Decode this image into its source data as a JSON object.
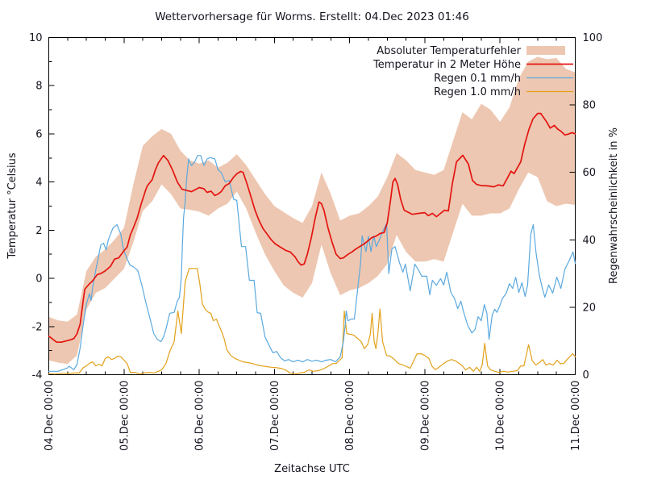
{
  "chart_data": {
    "type": "line",
    "title": "Wettervorhersage für Worms. Erstellt: 04.Dec 2023 01:46",
    "background_color": "#ffffff",
    "text_color": "#14141f",
    "axis_color": "#000000",
    "x_axis": {
      "label": "Zeitachse UTC",
      "range_hours": [
        0,
        168
      ],
      "tick_hours": [
        0,
        24,
        48,
        72,
        96,
        120,
        144,
        168
      ],
      "tick_labels": [
        "04.Dec 00:00",
        "05.Dec 00:00",
        "06.Dec 00:00",
        "07.Dec 00:00",
        "08.Dec 00:00",
        "09.Dec 00:00",
        "10.Dec 00:00",
        "11.Dec 00:00"
      ],
      "minor_tick_step_hours": 6
    },
    "y_axis": {
      "label": "Temperatur °Celsius",
      "range": [
        -4,
        10
      ],
      "ticks": [
        -4,
        -2,
        0,
        2,
        4,
        6,
        8,
        10
      ],
      "minor_ticks": [
        -3,
        -1,
        1,
        3,
        5,
        7,
        9
      ]
    },
    "y2_axis": {
      "label": "Regenwahrscheinlichkeit in %",
      "range": [
        0,
        100
      ],
      "ticks": [
        0,
        20,
        40,
        60,
        80,
        100
      ]
    },
    "legend": {
      "position": "top-right-inside",
      "items": [
        {
          "label": "Absoluter Temperaturfehler",
          "swatch": "band",
          "series_key": "error_band"
        },
        {
          "label": "Temperatur in 2 Meter Höhe",
          "swatch": "line",
          "series_key": "temperature"
        },
        {
          "label": "Regen 0.1 mm/h",
          "swatch": "line",
          "series_key": "rain_01"
        },
        {
          "label": "Regen 1.0 mm/h",
          "swatch": "line",
          "series_key": "rain_10"
        }
      ]
    },
    "series": {
      "error_band": {
        "name": "Absoluter Temperaturfehler",
        "color": "#EDC7B1",
        "axis": "y",
        "hours": [
          0,
          3,
          6,
          9,
          12,
          15,
          18,
          21,
          24,
          27,
          30,
          33,
          36,
          39,
          42,
          45,
          48,
          51,
          54,
          57,
          60,
          63,
          66,
          69,
          72,
          75,
          78,
          81,
          84,
          87,
          90,
          93,
          96,
          99,
          102,
          105,
          108,
          111,
          114,
          117,
          120,
          123,
          126,
          129,
          132,
          135,
          138,
          141,
          144,
          147,
          150,
          153,
          156,
          159,
          162,
          165,
          168
        ],
        "lower": [
          -3.4,
          -3.5,
          -3.55,
          -3.2,
          -1.3,
          -0.6,
          -0.4,
          0.0,
          0.4,
          1.5,
          2.8,
          3.2,
          3.9,
          3.5,
          2.9,
          2.85,
          2.77,
          2.6,
          2.9,
          3.1,
          3.6,
          2.9,
          1.9,
          1.0,
          0.3,
          -0.3,
          -0.6,
          -0.8,
          -0.2,
          1.4,
          0.2,
          -0.7,
          -0.5,
          -0.4,
          -0.2,
          0.1,
          0.6,
          1.8,
          1.1,
          0.7,
          0.7,
          0.8,
          0.7,
          1.9,
          3.1,
          2.6,
          2.6,
          2.7,
          2.7,
          2.9,
          3.7,
          4.4,
          4.2,
          3.2,
          3.0,
          3.1,
          3.05
        ],
        "upper": [
          -1.6,
          -1.75,
          -1.8,
          -1.5,
          0.3,
          0.9,
          1.2,
          1.6,
          2.1,
          3.9,
          5.5,
          5.9,
          6.2,
          6.0,
          5.3,
          4.9,
          4.77,
          4.9,
          4.6,
          4.8,
          5.15,
          4.7,
          4.1,
          3.5,
          3.0,
          2.75,
          2.5,
          2.3,
          3.0,
          4.4,
          3.5,
          2.4,
          2.6,
          2.7,
          3.0,
          3.4,
          4.2,
          5.2,
          4.9,
          4.5,
          4.4,
          4.3,
          4.5,
          5.7,
          6.9,
          6.6,
          7.25,
          7.0,
          6.5,
          7.1,
          8.3,
          9.0,
          9.2,
          9.1,
          9.15,
          8.7,
          8.55
        ]
      },
      "temperature": {
        "name": "Temperatur in 2 Meter Höhe",
        "color": "#E41410",
        "axis": "y",
        "hours": [
          0,
          1,
          2.5,
          4,
          5.5,
          7,
          8,
          9,
          10,
          11,
          11.5,
          12.8,
          14,
          15.4,
          16.6,
          17.9,
          19.7,
          21,
          22.3,
          24,
          25,
          26,
          27,
          28.2,
          29.5,
          31,
          31.5,
          33,
          34,
          35,
          36.6,
          38,
          39.5,
          41,
          42.5,
          44,
          45.5,
          47,
          48,
          49.5,
          50.5,
          51.8,
          53,
          54,
          55,
          56.3,
          57.6,
          58.8,
          60,
          61.2,
          62,
          63.2,
          64.5,
          65.8,
          67.1,
          68.4,
          69.7,
          71,
          72.3,
          73.5,
          75.6,
          77,
          78.6,
          79.5,
          80.5,
          81.5,
          82.5,
          83.8,
          85,
          86.2,
          87,
          87.8,
          89.1,
          90.4,
          91.7,
          93,
          94,
          95.5,
          96.8,
          98,
          100.6,
          103.2,
          104.4,
          105.7,
          107,
          108,
          109,
          109.8,
          110.5,
          111.3,
          112.3,
          113.4,
          116,
          118,
          120,
          121.1,
          122.4,
          123.7,
          125,
          126.3,
          127.5,
          128.8,
          130.1,
          132.1,
          133.9,
          135.2,
          136.5,
          138,
          140,
          142,
          143.5,
          145,
          146.5,
          147.5,
          148.5,
          150.6,
          151.9,
          153.2,
          154.5,
          156,
          157,
          158.8,
          160,
          161.3,
          162.4,
          163.4,
          164.7,
          166,
          167,
          168
        ],
        "values": [
          -2.4,
          -2.5,
          -2.65,
          -2.65,
          -2.6,
          -2.55,
          -2.5,
          -2.3,
          -1.9,
          -0.9,
          -0.45,
          -0.25,
          -0.1,
          0.15,
          0.2,
          0.3,
          0.5,
          0.8,
          0.85,
          1.15,
          1.3,
          1.8,
          2.1,
          2.5,
          3.1,
          3.7,
          3.85,
          4.1,
          4.5,
          4.8,
          5.1,
          4.9,
          4.5,
          4.0,
          3.7,
          3.65,
          3.6,
          3.7,
          3.77,
          3.72,
          3.57,
          3.62,
          3.44,
          3.5,
          3.6,
          3.84,
          3.94,
          4.17,
          4.34,
          4.44,
          4.4,
          3.94,
          3.4,
          2.83,
          2.4,
          2.06,
          1.83,
          1.6,
          1.43,
          1.33,
          1.16,
          1.1,
          0.89,
          0.7,
          0.55,
          0.6,
          1.0,
          1.7,
          2.5,
          3.17,
          3.1,
          2.83,
          2.1,
          1.5,
          1.0,
          0.82,
          0.85,
          1.0,
          1.1,
          1.22,
          1.43,
          1.7,
          1.75,
          1.86,
          1.9,
          2.3,
          3.2,
          4.0,
          4.15,
          3.9,
          3.27,
          2.83,
          2.66,
          2.7,
          2.73,
          2.6,
          2.7,
          2.56,
          2.7,
          2.83,
          2.8,
          3.94,
          4.84,
          5.11,
          4.74,
          4.07,
          3.9,
          3.85,
          3.84,
          3.8,
          3.88,
          3.84,
          4.2,
          4.45,
          4.35,
          4.84,
          5.58,
          6.18,
          6.62,
          6.85,
          6.85,
          6.51,
          6.24,
          6.35,
          6.2,
          6.11,
          5.95,
          6.0,
          6.05,
          6.0
        ]
      },
      "rain_01": {
        "name": "Regen 0.1 mm/h",
        "color": "#5BA9DF",
        "axis": "y2",
        "hours": [
          0,
          3,
          6,
          6.5,
          8,
          9,
          10,
          11,
          12,
          13,
          13.5,
          14,
          15,
          16.6,
          17.5,
          18.3,
          19,
          20.5,
          21.8,
          23,
          23.8,
          24.6,
          25.9,
          27,
          28.4,
          29.7,
          31,
          32,
          32.8,
          33.5,
          34.6,
          35.8,
          36.6,
          37.4,
          38.6,
          40,
          41,
          41.7,
          42.3,
          42.6,
          43,
          43.5,
          44,
          44.6,
          45.5,
          46.5,
          47.5,
          48.5,
          49.5,
          50.5,
          51.5,
          53,
          54,
          55,
          56.3,
          57.6,
          59,
          60,
          61.5,
          62.8,
          64,
          65.5,
          66.5,
          67.6,
          69,
          70.2,
          71.5,
          72.7,
          74,
          75.3,
          76.5,
          78,
          79.5,
          81,
          82.5,
          84,
          85.5,
          87,
          88.5,
          90,
          91.5,
          93,
          94,
          94.6,
          94.9,
          95.5,
          96.5,
          97.5,
          98.5,
          99.5,
          100,
          101.2,
          102,
          102.8,
          103.7,
          104.5,
          105.5,
          106.3,
          107.8,
          108.5,
          109.5,
          110.5,
          112,
          113,
          113.8,
          115.3,
          116,
          116.8,
          118,
          119,
          120.6,
          121.6,
          122.4,
          123.7,
          125,
          126,
          127,
          128.3,
          129.5,
          130.5,
          131.5,
          132.5,
          133.7,
          135,
          136,
          137,
          138,
          139,
          139.8,
          140.5,
          141.5,
          142.3,
          143,
          144,
          144.7,
          146,
          147,
          148,
          149,
          150,
          151,
          152,
          152.8,
          153.8,
          154.6,
          155.5,
          156.5,
          157.5,
          158.3,
          159.5,
          160.8,
          162.1,
          163.4,
          164.7,
          166,
          167.3,
          168
        ],
        "values": [
          1,
          1,
          2,
          2.5,
          1.5,
          3,
          8,
          15,
          21,
          24,
          22,
          26,
          31,
          38.5,
          39,
          37,
          40,
          43.6,
          44.5,
          41.6,
          37.3,
          35.2,
          32.5,
          32,
          30.9,
          26.6,
          21.3,
          17.7,
          14.8,
          12.2,
          10.5,
          9.8,
          11.2,
          13.6,
          18.2,
          18.5,
          21.8,
          23,
          28.9,
          37.6,
          46.4,
          51.2,
          58,
          64,
          62,
          63,
          65,
          65,
          62,
          64,
          64.4,
          64,
          60.8,
          60,
          57.2,
          57.6,
          52,
          51.7,
          38,
          38,
          28,
          28,
          18.4,
          18.2,
          11.2,
          8.9,
          6.5,
          6.9,
          5,
          4.1,
          4.5,
          3.8,
          4.3,
          3.8,
          4.5,
          4,
          4.3,
          3.8,
          4.3,
          4.5,
          3.8,
          5.3,
          9.8,
          14.8,
          18.9,
          16,
          16.5,
          16.5,
          25,
          33,
          41.2,
          36.5,
          41,
          36.5,
          41.2,
          38,
          40,
          42,
          44.8,
          30,
          37.3,
          38,
          33,
          30.4,
          32.8,
          24.9,
          28.5,
          32.8,
          31,
          29.2,
          29.2,
          23.7,
          28,
          26.5,
          28.5,
          26.6,
          30.4,
          24.4,
          22.5,
          19.6,
          21.8,
          18.2,
          14.6,
          12.4,
          13.4,
          17.2,
          16,
          20.8,
          18.2,
          10.5,
          17.7,
          19.4,
          18.5,
          20.6,
          22.5,
          24.2,
          27,
          25.6,
          28.9,
          24.4,
          27.3,
          23.2,
          26.6,
          41.6,
          44.5,
          36.1,
          29.7,
          25.6,
          23,
          26.6,
          24.2,
          28.9,
          25.6,
          31.3,
          33.7,
          36.4,
          33
        ]
      },
      "rain_10": {
        "name": "Regen 1.0 mm/h",
        "color": "#E2A11B",
        "axis": "y2",
        "hours": [
          0,
          2,
          4,
          6,
          8,
          9.7,
          11,
          12,
          13,
          14,
          15,
          16,
          17,
          18,
          19,
          20,
          21,
          22,
          23,
          24,
          25,
          26,
          27.5,
          29,
          30.5,
          32,
          33.5,
          35,
          36,
          37.4,
          38.6,
          40,
          41.2,
          42.3,
          43.5,
          44.8,
          46.2,
          47.4,
          48.2,
          49,
          49.9,
          50.8,
          51.7,
          52.5,
          53.5,
          54.3,
          55.1,
          56,
          56.8,
          58.1,
          59.4,
          60.7,
          62,
          63.5,
          65,
          66.5,
          68,
          69.5,
          71,
          72.5,
          74,
          75.5,
          77,
          78.5,
          80,
          81.5,
          83,
          84.5,
          86,
          87.5,
          89,
          90.5,
          91.7,
          92.8,
          93.6,
          94.3,
          95.1,
          96,
          97.2,
          98.5,
          99.7,
          100.7,
          101.8,
          102.6,
          103.2,
          103.8,
          104.4,
          105,
          105.7,
          106.5,
          107.8,
          109,
          110.3,
          111.6,
          113,
          114.2,
          115.3,
          116.3,
          117.5,
          118.8,
          120,
          121.3,
          122.3,
          123.3,
          124.5,
          126,
          127.3,
          128.5,
          129.8,
          131,
          132,
          133,
          134.3,
          135.5,
          136.5,
          137.5,
          138.3,
          139.1,
          140,
          141,
          142.3,
          143.6,
          145,
          146.5,
          148,
          149.5,
          150.6,
          151.6,
          153.1,
          154.3,
          155.4,
          156.6,
          157.6,
          158.6,
          159.8,
          161,
          162.2,
          163.3,
          164.4,
          165.4,
          166.4,
          167.2,
          168
        ],
        "values": [
          0.3,
          0.2,
          0.4,
          0.3,
          0.5,
          0.5,
          2.1,
          2.6,
          3.4,
          3.8,
          2.6,
          3.1,
          2.6,
          4.8,
          5.3,
          4.5,
          4.8,
          5.5,
          5.3,
          4.3,
          3.3,
          0.7,
          0.7,
          0.2,
          0.5,
          0.7,
          0.5,
          1,
          1.4,
          3.3,
          6.9,
          9.8,
          18.9,
          12.2,
          27.5,
          31.5,
          31.5,
          31.5,
          27,
          21,
          19.4,
          18.6,
          18.2,
          16,
          16.5,
          14.6,
          12.9,
          10.5,
          7.4,
          5.7,
          4.8,
          4.3,
          3.8,
          3.6,
          3.3,
          2.9,
          2.6,
          2.4,
          2.2,
          2.1,
          1.9,
          1.4,
          0.5,
          0.2,
          0.5,
          0.7,
          1.4,
          1,
          1.2,
          1.7,
          2.4,
          3.3,
          3.3,
          4.3,
          5,
          18.9,
          12.2,
          12,
          11.8,
          10.8,
          9.8,
          7.7,
          9,
          12,
          18.2,
          10,
          7.7,
          12,
          19.5,
          9.8,
          5.7,
          5.5,
          4.5,
          3.3,
          2.9,
          2.4,
          1.9,
          3.8,
          6.2,
          6.2,
          5.7,
          4.8,
          2.5,
          1.5,
          2.2,
          3.3,
          4.1,
          4.5,
          4.1,
          3.3,
          2.6,
          1.4,
          2.2,
          1,
          2.2,
          1,
          2.9,
          9.3,
          2.6,
          1.4,
          1,
          0.7,
          1,
          0.8,
          1,
          1.2,
          2.6,
          2.6,
          8.9,
          4.1,
          2.9,
          3.6,
          4.5,
          2.9,
          3.3,
          2.9,
          4.3,
          3.2,
          3.4,
          4.5,
          5.5,
          6.2,
          5.3
        ]
      }
    }
  }
}
